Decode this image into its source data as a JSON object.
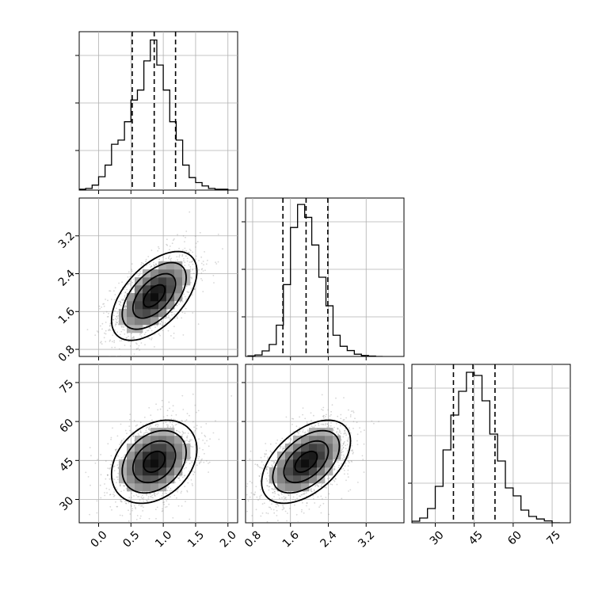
{
  "chart_data": {
    "type": "corner",
    "parameters": [
      {
        "key": "p0",
        "range": [
          -0.3,
          2.15
        ],
        "ticks": [
          0.0,
          0.5,
          1.0,
          1.5,
          2.0
        ],
        "tick_labels": [
          "0.0",
          "0.5",
          "1.0",
          "1.5",
          "2.0"
        ],
        "quantiles": [
          0.52,
          0.86,
          1.19
        ],
        "hist": {
          "bin_edges": [
            -0.3,
            -0.2,
            -0.1,
            0.0,
            0.1,
            0.2,
            0.3,
            0.4,
            0.5,
            0.6,
            0.7,
            0.8,
            0.9,
            1.0,
            1.1,
            1.2,
            1.3,
            1.4,
            1.5,
            1.6,
            1.7,
            1.8,
            1.9,
            2.0,
            2.1
          ],
          "counts": [
            1,
            2,
            6,
            16,
            30,
            55,
            60,
            82,
            108,
            120,
            155,
            180,
            150,
            120,
            82,
            60,
            30,
            15,
            9,
            5,
            2,
            1,
            1,
            0
          ],
          "ymax": 190
        }
      },
      {
        "key": "p1",
        "range": [
          0.65,
          4.0
        ],
        "ticks": [
          0.8,
          1.6,
          2.4,
          3.2
        ],
        "tick_labels": [
          "0.8",
          "1.6",
          "2.4",
          "3.2"
        ],
        "quantiles": [
          1.44,
          1.93,
          2.39
        ],
        "hist": {
          "bin_edges": [
            0.7,
            0.85,
            1.0,
            1.15,
            1.3,
            1.45,
            1.6,
            1.75,
            1.9,
            2.05,
            2.2,
            2.35,
            2.5,
            2.65,
            2.8,
            2.95,
            3.1,
            3.25,
            3.4,
            3.55
          ],
          "counts": [
            3,
            8,
            30,
            65,
            170,
            390,
            700,
            825,
            755,
            605,
            430,
            275,
            115,
            55,
            32,
            12,
            5,
            2,
            0
          ],
          "ymax": 860
        }
      },
      {
        "key": "p2",
        "range": [
          21,
          82
        ],
        "ticks": [
          30,
          45,
          60,
          75
        ],
        "tick_labels": [
          "30",
          "45",
          "60",
          "75"
        ],
        "quantiles": [
          37.0,
          44.5,
          53.0
        ],
        "hist": {
          "bin_edges": [
            21,
            24,
            27,
            30,
            33,
            36,
            39,
            42,
            45,
            48,
            51,
            54,
            57,
            60,
            63,
            66,
            69,
            72,
            75,
            78
          ],
          "counts": [
            5,
            15,
            45,
            115,
            230,
            340,
            415,
            475,
            465,
            385,
            280,
            195,
            110,
            85,
            40,
            20,
            12,
            6,
            0
          ],
          "ymax": 500
        }
      }
    ],
    "pairs": [
      {
        "x": "p0",
        "y": "p1",
        "center": [
          0.86,
          1.93
        ],
        "sigma": [
          0.33,
          0.47
        ],
        "rho": 0.55
      },
      {
        "x": "p0",
        "y": "p2",
        "center": [
          0.86,
          44.5
        ],
        "sigma": [
          0.33,
          8.0
        ],
        "rho": 0.3
      },
      {
        "x": "p1",
        "y": "p2",
        "center": [
          1.93,
          44.5
        ],
        "sigma": [
          0.47,
          8.0
        ],
        "rho": 0.5
      }
    ],
    "contour_levels_sigma": [
      0.5,
      1.0,
      1.5,
      2.0
    ],
    "grid": true,
    "colors": {
      "line": "#000000",
      "grid": "#b0b0b0",
      "points": "#8c8c8c",
      "density": "#000000"
    }
  }
}
